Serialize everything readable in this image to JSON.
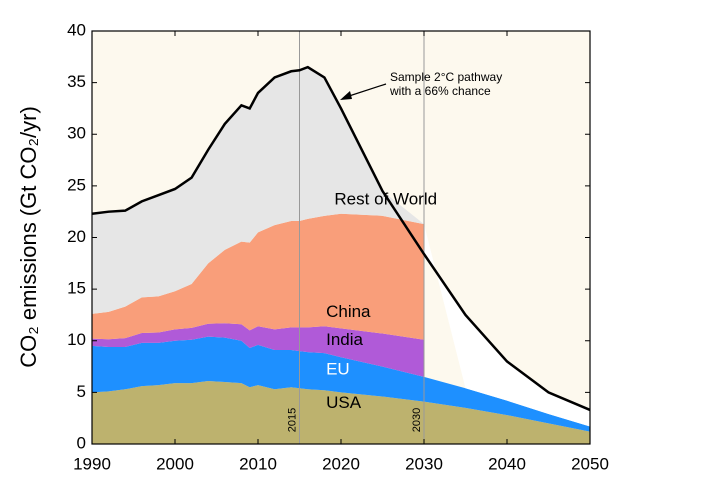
{
  "chart_data": {
    "type": "stacked_area",
    "y_label": "CO₂ emissions (Gt CO₂/yr)",
    "x": [
      1990,
      1992,
      1994,
      1996,
      1998,
      2000,
      2002,
      2004,
      2006,
      2008,
      2009,
      2010,
      2012,
      2014,
      2015,
      2016,
      2018,
      2020,
      2025,
      2030,
      2035,
      2040,
      2045,
      2050
    ],
    "series": [
      {
        "name": "USA",
        "color": "#bdb26e",
        "label_color": "#000000",
        "values": [
          5.0,
          5.1,
          5.3,
          5.6,
          5.7,
          5.9,
          5.9,
          6.1,
          6.0,
          5.9,
          5.5,
          5.7,
          5.3,
          5.5,
          5.4,
          5.3,
          5.2,
          5.0,
          4.6,
          4.1,
          3.5,
          2.8,
          2.0,
          1.2
        ]
      },
      {
        "name": "EU",
        "color": "#1e90ff",
        "label_color": "#ffffff",
        "values": [
          4.5,
          4.3,
          4.1,
          4.2,
          4.1,
          4.1,
          4.2,
          4.3,
          4.3,
          4.1,
          3.8,
          3.9,
          3.8,
          3.6,
          3.6,
          3.6,
          3.6,
          3.4,
          2.9,
          2.4,
          1.9,
          1.4,
          0.9,
          0.5
        ]
      },
      {
        "name": "India",
        "color": "#b05ad8",
        "label_color": "#000000",
        "values": [
          0.7,
          0.75,
          0.85,
          0.95,
          1.0,
          1.1,
          1.15,
          1.25,
          1.4,
          1.6,
          1.7,
          1.8,
          2.0,
          2.2,
          2.3,
          2.4,
          2.6,
          2.8,
          3.2,
          3.6,
          null,
          null,
          null,
          null
        ]
      },
      {
        "name": "China",
        "color": "#f99e7a",
        "label_color": "#000000",
        "values": [
          2.4,
          2.65,
          3.05,
          3.45,
          3.5,
          3.7,
          4.25,
          5.85,
          7.1,
          8.0,
          8.5,
          9.1,
          10.1,
          10.3,
          10.3,
          10.5,
          10.7,
          11.1,
          11.4,
          11.2,
          null,
          null,
          null,
          null
        ]
      },
      {
        "name": "Rest of World",
        "color": "#e6e6e6",
        "label_color": "#000000",
        "values": [
          9.7,
          9.7,
          9.3,
          9.3,
          9.8,
          9.9,
          10.3,
          11.0,
          12.2,
          13.2,
          13.0,
          13.5,
          14.3,
          14.5,
          14.6,
          14.7,
          13.4,
          10.2,
          2.4,
          0,
          null,
          null,
          null,
          null
        ]
      }
    ],
    "pathway": {
      "color": "#000000",
      "values": [
        22.3,
        22.5,
        22.6,
        23.5,
        24.1,
        24.7,
        25.8,
        28.5,
        31.0,
        32.8,
        32.5,
        34.0,
        35.5,
        36.1,
        36.2,
        36.5,
        35.5,
        32.5,
        24.5,
        18.4,
        12.5,
        8.0,
        5.0,
        3.3
      ]
    },
    "annotation": [
      "Sample 2°C pathway",
      "with a 66% chance"
    ],
    "markers": [
      2015,
      2030
    ],
    "xlim": [
      1990,
      2050
    ],
    "xticks": [
      1990,
      2000,
      2010,
      2020,
      2030,
      2040,
      2050
    ],
    "ylim": [
      0,
      40
    ],
    "yticks": [
      0,
      5,
      10,
      15,
      20,
      25,
      30,
      35,
      40
    ]
  }
}
